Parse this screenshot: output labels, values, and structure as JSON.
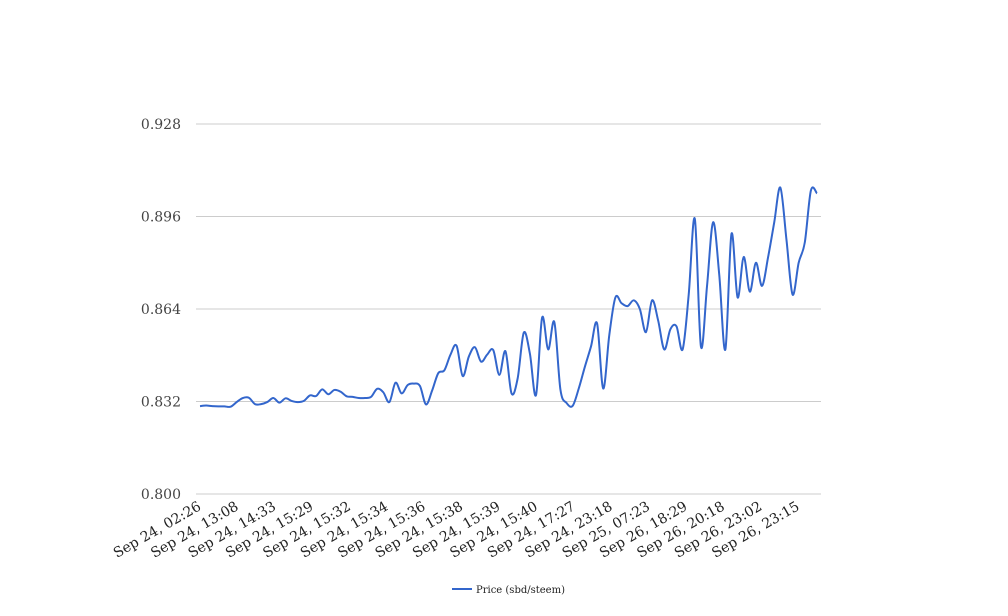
{
  "chart_data": {
    "type": "line",
    "title": "",
    "xlabel": "",
    "ylabel": "",
    "ylim": [
      0.8,
      0.928
    ],
    "yticks": [
      "0.800",
      "0.832",
      "0.864",
      "0.896",
      "0.928"
    ],
    "grid": true,
    "legend_position": "bottom-center",
    "x_tick_labels": [
      "Sep 24, 02:26",
      "Sep 24, 13:08",
      "Sep 24, 14:33",
      "Sep 24, 15:29",
      "Sep 24, 15:32",
      "Sep 24, 15:34",
      "Sep 24, 15:36",
      "Sep 24, 15:38",
      "Sep 24, 15:39",
      "Sep 24, 15:40",
      "Sep 24, 17:27",
      "Sep 24, 23:18",
      "Sep 25, 07:23",
      "Sep 26, 18:29",
      "Sep 26, 20:18",
      "Sep 26, 23:02",
      "Sep 26, 23:15"
    ],
    "series": [
      {
        "name": "Price (sbd/steem)",
        "color": "#3366cc",
        "values": [
          0.8304,
          0.8306,
          0.8304,
          0.8303,
          0.8303,
          0.8302,
          0.8318,
          0.8332,
          0.8333,
          0.8311,
          0.8311,
          0.8318,
          0.8332,
          0.8316,
          0.8331,
          0.8322,
          0.8318,
          0.8322,
          0.8341,
          0.8339,
          0.8362,
          0.8345,
          0.836,
          0.8354,
          0.8338,
          0.8336,
          0.8332,
          0.8332,
          0.8336,
          0.8364,
          0.8352,
          0.8318,
          0.8385,
          0.8348,
          0.8377,
          0.8382,
          0.8374,
          0.831,
          0.8358,
          0.8418,
          0.8428,
          0.8482,
          0.8513,
          0.8408,
          0.8475,
          0.8508,
          0.8458,
          0.8482,
          0.8498,
          0.8412,
          0.8494,
          0.8348,
          0.84,
          0.8558,
          0.8486,
          0.8342,
          0.861,
          0.85,
          0.8595,
          0.8361,
          0.8315,
          0.8305,
          0.8365,
          0.844,
          0.851,
          0.859,
          0.8365,
          0.855,
          0.868,
          0.866,
          0.865,
          0.867,
          0.864,
          0.856,
          0.867,
          0.86,
          0.85,
          0.857,
          0.858,
          0.85,
          0.869,
          0.8952,
          0.851,
          0.872,
          0.894,
          0.8758,
          0.85,
          0.89,
          0.868,
          0.882,
          0.87,
          0.88,
          0.872,
          0.882,
          0.894,
          0.906,
          0.888,
          0.869,
          0.88,
          0.887,
          0.905,
          0.904
        ]
      }
    ]
  }
}
